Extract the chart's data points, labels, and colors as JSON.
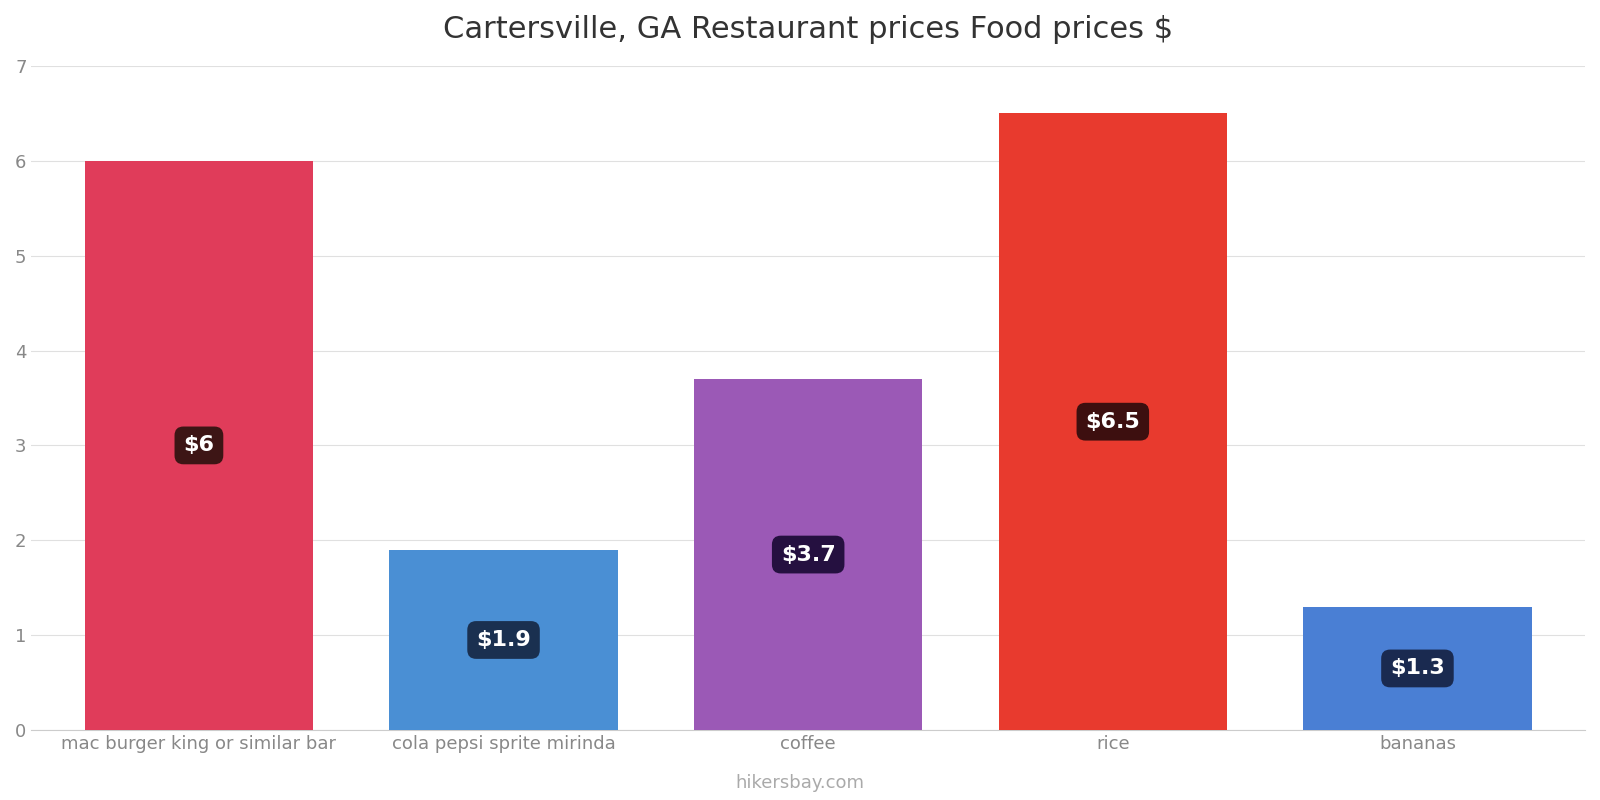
{
  "title": "Cartersville, GA Restaurant prices Food prices $",
  "categories": [
    "mac burger king or similar bar",
    "cola pepsi sprite mirinda",
    "coffee",
    "rice",
    "bananas"
  ],
  "values": [
    6.0,
    1.9,
    3.7,
    6.5,
    1.3
  ],
  "bar_colors": [
    "#e03c5a",
    "#4a8fd4",
    "#9b59b6",
    "#e83a2e",
    "#4a7fd4"
  ],
  "label_texts": [
    "$6",
    "$1.9",
    "$3.7",
    "$6.5",
    "$1.3"
  ],
  "label_bg_colors": [
    "#3d1515",
    "#1a3050",
    "#251040",
    "#3d0f0f",
    "#1a2a50"
  ],
  "ylim": [
    0,
    7
  ],
  "yticks": [
    0,
    1,
    2,
    3,
    4,
    5,
    6,
    7
  ],
  "background_color": "#ffffff",
  "grid_color": "#e0e0e0",
  "watermark": "hikersbay.com",
  "title_fontsize": 22,
  "label_fontsize": 16,
  "tick_fontsize": 13,
  "watermark_fontsize": 13,
  "bar_width": 0.75
}
